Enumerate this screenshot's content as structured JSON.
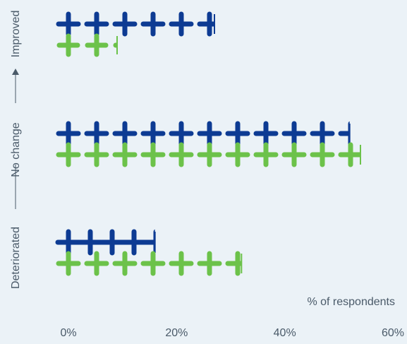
{
  "chart_data": {
    "type": "bar",
    "categories": [
      "Improved",
      "No change",
      "Deteriorated"
    ],
    "series": [
      {
        "values": [
          27,
          52,
          16
        ]
      },
      {
        "values": [
          9,
          54,
          32
        ]
      }
    ],
    "xlabel": "% of respondents",
    "ylabel": "",
    "xlim": [
      0,
      60
    ],
    "x_ticks": [
      "0%",
      "20%",
      "40%",
      "60%"
    ],
    "y_axis_scale_labels": [
      "Deteriorated",
      "No change",
      "Improved"
    ],
    "grid": false,
    "legend": "none"
  },
  "colors": {
    "background": "#ebf2f7",
    "series_1": "#0d3b93",
    "series_2": "#6cc24a",
    "text": "#4a5a69"
  },
  "icons": {
    "mark_icon": "plus-icon"
  }
}
